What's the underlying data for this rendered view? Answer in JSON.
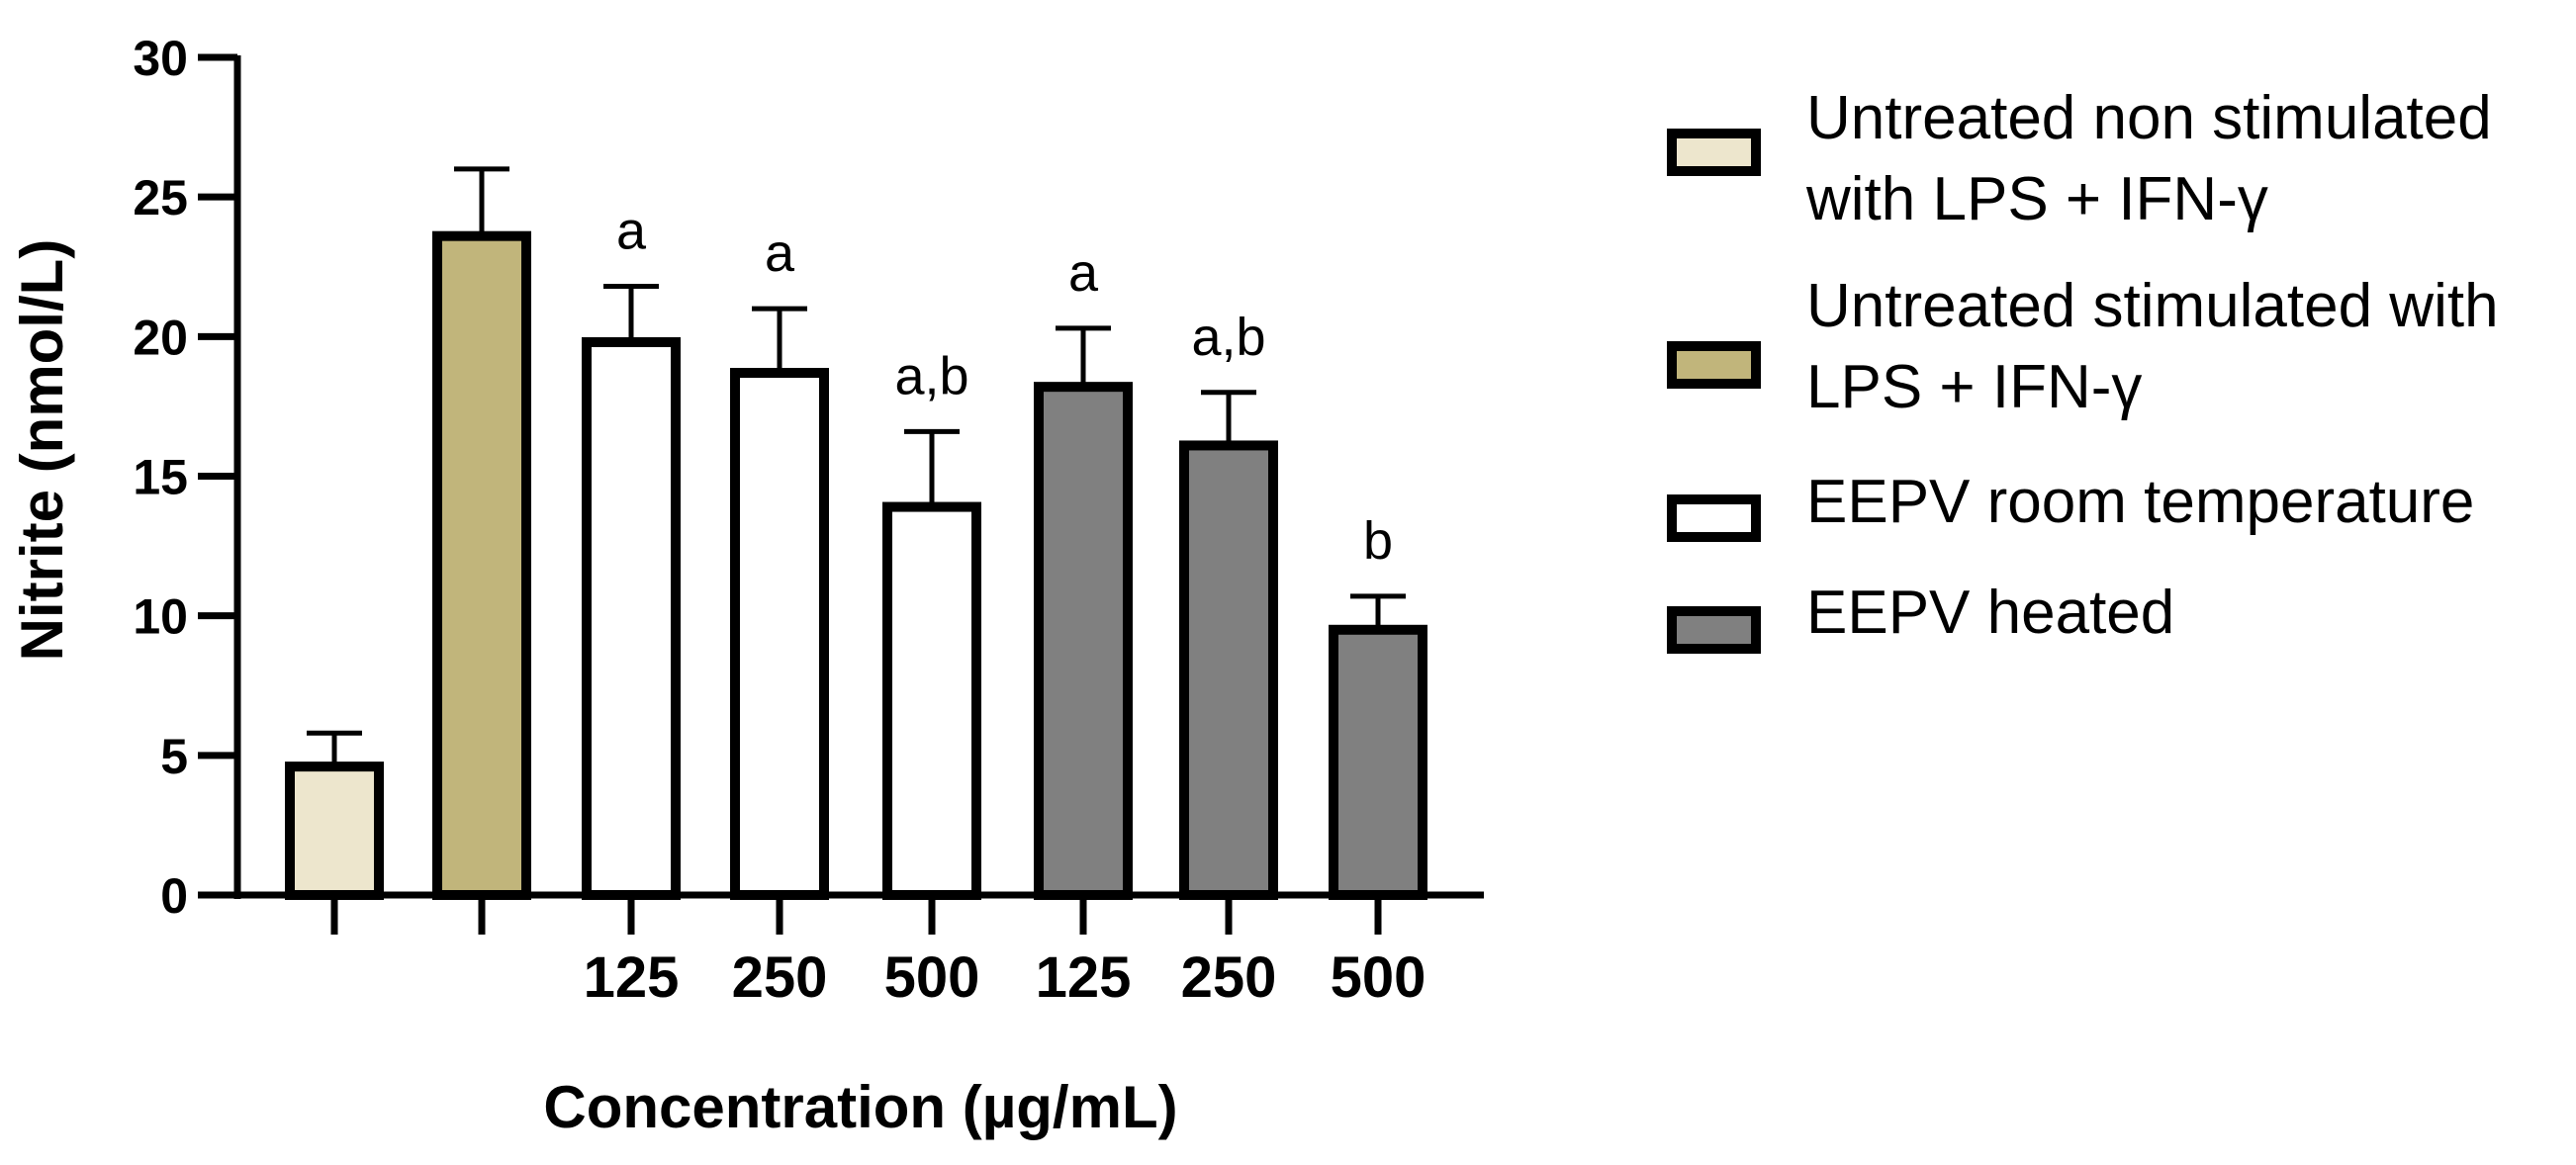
{
  "chart_data": {
    "type": "bar",
    "xlabel": "Concentration (µg/mL)",
    "ylabel": "Nitrite (nmol/L)",
    "ylim": [
      0,
      30
    ],
    "yticks": [
      0,
      5,
      10,
      15,
      20,
      25,
      30
    ],
    "grid": false,
    "legend_position": "right",
    "bars": [
      {
        "label": "",
        "value": 4.6,
        "error": 1.2,
        "annotation": "",
        "series": 0
      },
      {
        "label": "",
        "value": 23.6,
        "error": 2.4,
        "annotation": "",
        "series": 1
      },
      {
        "label": "125",
        "value": 19.8,
        "error": 2.0,
        "annotation": "a",
        "series": 2
      },
      {
        "label": "250",
        "value": 18.7,
        "error": 2.3,
        "annotation": "a",
        "series": 2
      },
      {
        "label": "500",
        "value": 13.9,
        "error": 2.7,
        "annotation": "a,b",
        "series": 2
      },
      {
        "label": "125",
        "value": 18.2,
        "error": 2.1,
        "annotation": "a",
        "series": 3
      },
      {
        "label": "250",
        "value": 16.1,
        "error": 1.9,
        "annotation": "a,b",
        "series": 3
      },
      {
        "label": "500",
        "value": 9.5,
        "error": 1.2,
        "annotation": "b",
        "series": 3
      }
    ],
    "series": [
      {
        "name": "Untreated non stimulated with LPS + IFN-γ",
        "lines": [
          "Untreated non stimulated",
          "with LPS + IFN-γ"
        ],
        "color": "#ede6cd"
      },
      {
        "name": "Untreated stimulated with LPS + IFN-γ",
        "lines": [
          "Untreated stimulated with",
          "LPS + IFN-γ"
        ],
        "color": "#c1b57b"
      },
      {
        "name": "EEPV room temperature",
        "lines": [
          "EEPV room temperature"
        ],
        "color": "#ffffff"
      },
      {
        "name": "EEPV heated",
        "lines": [
          "EEPV heated"
        ],
        "color": "#808080"
      }
    ]
  }
}
